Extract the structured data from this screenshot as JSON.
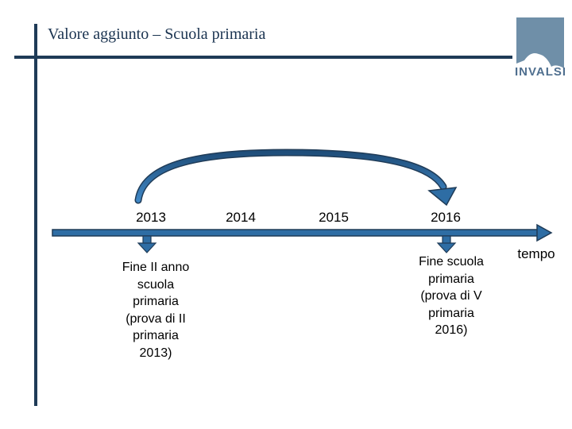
{
  "slide": {
    "title": "Valore aggiunto – Scuola primaria"
  },
  "logo": {
    "text": "INVALSI",
    "icon": "invalsi-logo"
  },
  "timeline": {
    "years": [
      "2013",
      "2014",
      "2015",
      "2016"
    ],
    "axis_label": "tempo",
    "start_label": "Fine II anno scuola primaria (prova di II primaria 2013)",
    "start_lines": [
      "Fine II anno",
      "scuola",
      "primaria",
      "(prova di II",
      "primaria",
      "2013)"
    ],
    "end_label": "Fine scuola primaria (prova di V primaria 2016)",
    "end_lines": [
      "Fine scuola",
      "primaria",
      "(prova di V",
      "primaria",
      "2016)"
    ],
    "color": "#2e6da4",
    "dark_color": "#1f3b57"
  }
}
